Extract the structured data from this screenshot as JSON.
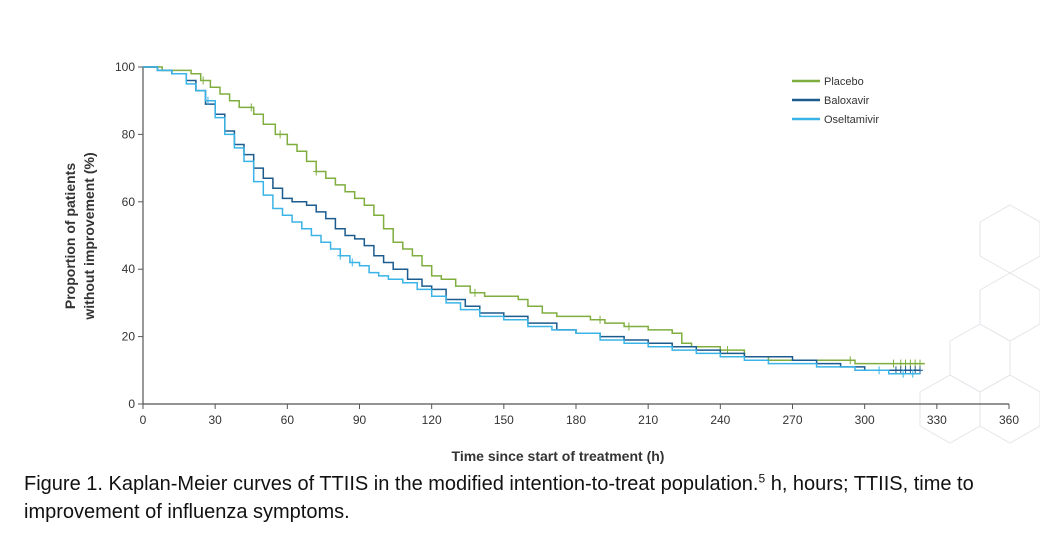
{
  "chart_data": {
    "type": "line",
    "xlabel": "Time since start of treatment (h)",
    "ylabel_line1": "Proportion of patients",
    "ylabel_line2": "without improvement (%)",
    "xlim": [
      0,
      360
    ],
    "ylim": [
      0,
      100
    ],
    "xticks": [
      0,
      30,
      60,
      90,
      120,
      150,
      180,
      210,
      240,
      270,
      300,
      330,
      360
    ],
    "yticks": [
      0,
      20,
      40,
      60,
      80,
      100
    ],
    "grid": false,
    "legend_position": "top-right",
    "series": [
      {
        "name": "Placebo",
        "color": "#7fae3e",
        "points": [
          [
            0,
            100
          ],
          [
            8,
            99
          ],
          [
            14,
            99
          ],
          [
            20,
            98
          ],
          [
            24,
            96
          ],
          [
            28,
            94
          ],
          [
            32,
            92
          ],
          [
            36,
            90
          ],
          [
            40,
            88
          ],
          [
            46,
            86
          ],
          [
            50,
            83
          ],
          [
            55,
            80
          ],
          [
            60,
            77
          ],
          [
            64,
            75
          ],
          [
            68,
            72
          ],
          [
            72,
            69
          ],
          [
            76,
            67
          ],
          [
            80,
            65
          ],
          [
            84,
            63
          ],
          [
            88,
            61
          ],
          [
            92,
            59
          ],
          [
            96,
            56
          ],
          [
            100,
            52
          ],
          [
            104,
            48
          ],
          [
            108,
            46
          ],
          [
            112,
            44
          ],
          [
            116,
            41
          ],
          [
            120,
            38
          ],
          [
            124,
            37
          ],
          [
            130,
            35
          ],
          [
            136,
            33
          ],
          [
            142,
            32
          ],
          [
            150,
            32
          ],
          [
            156,
            31
          ],
          [
            160,
            29
          ],
          [
            166,
            27
          ],
          [
            172,
            26
          ],
          [
            180,
            26
          ],
          [
            186,
            25
          ],
          [
            192,
            24
          ],
          [
            200,
            23
          ],
          [
            210,
            22
          ],
          [
            220,
            21
          ],
          [
            224,
            18
          ],
          [
            228,
            17
          ],
          [
            240,
            16
          ],
          [
            250,
            14
          ],
          [
            260,
            13
          ],
          [
            280,
            13
          ],
          [
            290,
            13
          ],
          [
            296,
            12
          ],
          [
            310,
            12
          ],
          [
            325,
            12
          ]
        ],
        "censor_x": [
          25,
          45,
          57,
          72,
          138,
          190,
          202,
          243,
          294,
          312,
          315,
          317,
          319,
          321,
          323
        ]
      },
      {
        "name": "Baloxavir",
        "color": "#1b5b8e",
        "points": [
          [
            0,
            100
          ],
          [
            6,
            99
          ],
          [
            12,
            98
          ],
          [
            18,
            96
          ],
          [
            22,
            93
          ],
          [
            26,
            89
          ],
          [
            30,
            86
          ],
          [
            34,
            81
          ],
          [
            38,
            77
          ],
          [
            42,
            74
          ],
          [
            46,
            70
          ],
          [
            50,
            67
          ],
          [
            54,
            64
          ],
          [
            58,
            61
          ],
          [
            62,
            60
          ],
          [
            68,
            59
          ],
          [
            72,
            57
          ],
          [
            76,
            55
          ],
          [
            80,
            52
          ],
          [
            84,
            50
          ],
          [
            88,
            49
          ],
          [
            92,
            47
          ],
          [
            96,
            44
          ],
          [
            100,
            42
          ],
          [
            104,
            40
          ],
          [
            110,
            37
          ],
          [
            116,
            35
          ],
          [
            120,
            34
          ],
          [
            126,
            31
          ],
          [
            134,
            29
          ],
          [
            140,
            27
          ],
          [
            150,
            26
          ],
          [
            160,
            24
          ],
          [
            172,
            22
          ],
          [
            180,
            21
          ],
          [
            190,
            20
          ],
          [
            200,
            19
          ],
          [
            210,
            18
          ],
          [
            220,
            17
          ],
          [
            230,
            16
          ],
          [
            240,
            15
          ],
          [
            250,
            14
          ],
          [
            270,
            13
          ],
          [
            280,
            12
          ],
          [
            290,
            11
          ],
          [
            300,
            10
          ],
          [
            310,
            10
          ],
          [
            323,
            10
          ]
        ],
        "censor_x": [
          313,
          315,
          317,
          319,
          321,
          323
        ]
      },
      {
        "name": "Oseltamivir",
        "color": "#3ab3e6",
        "points": [
          [
            0,
            100
          ],
          [
            6,
            99
          ],
          [
            12,
            98
          ],
          [
            18,
            95
          ],
          [
            22,
            93
          ],
          [
            26,
            90
          ],
          [
            30,
            85
          ],
          [
            34,
            80
          ],
          [
            38,
            76
          ],
          [
            42,
            72
          ],
          [
            46,
            66
          ],
          [
            50,
            62
          ],
          [
            54,
            58
          ],
          [
            58,
            56
          ],
          [
            62,
            54
          ],
          [
            66,
            52
          ],
          [
            70,
            50
          ],
          [
            74,
            48
          ],
          [
            78,
            46
          ],
          [
            82,
            44
          ],
          [
            86,
            42
          ],
          [
            90,
            41
          ],
          [
            94,
            39
          ],
          [
            98,
            38
          ],
          [
            102,
            37
          ],
          [
            108,
            36
          ],
          [
            114,
            34
          ],
          [
            120,
            32
          ],
          [
            126,
            30
          ],
          [
            132,
            28
          ],
          [
            140,
            26
          ],
          [
            150,
            25
          ],
          [
            160,
            23
          ],
          [
            170,
            22
          ],
          [
            180,
            21
          ],
          [
            190,
            19
          ],
          [
            200,
            18
          ],
          [
            210,
            17
          ],
          [
            220,
            16
          ],
          [
            230,
            15
          ],
          [
            240,
            14
          ],
          [
            250,
            13
          ],
          [
            260,
            12
          ],
          [
            270,
            12
          ],
          [
            280,
            11
          ],
          [
            290,
            11
          ],
          [
            296,
            10
          ],
          [
            310,
            9
          ],
          [
            323,
            9
          ]
        ],
        "censor_x": [
          27,
          82,
          87,
          306,
          316,
          320
        ]
      }
    ]
  },
  "caption": {
    "text_before": "Figure 1. Kaplan-Meier curves of TTIIS in the modified intention-to-treat population.",
    "superscript": "5",
    "text_after": " h, hours; TTIIS, time to improvement of influenza symptoms."
  }
}
